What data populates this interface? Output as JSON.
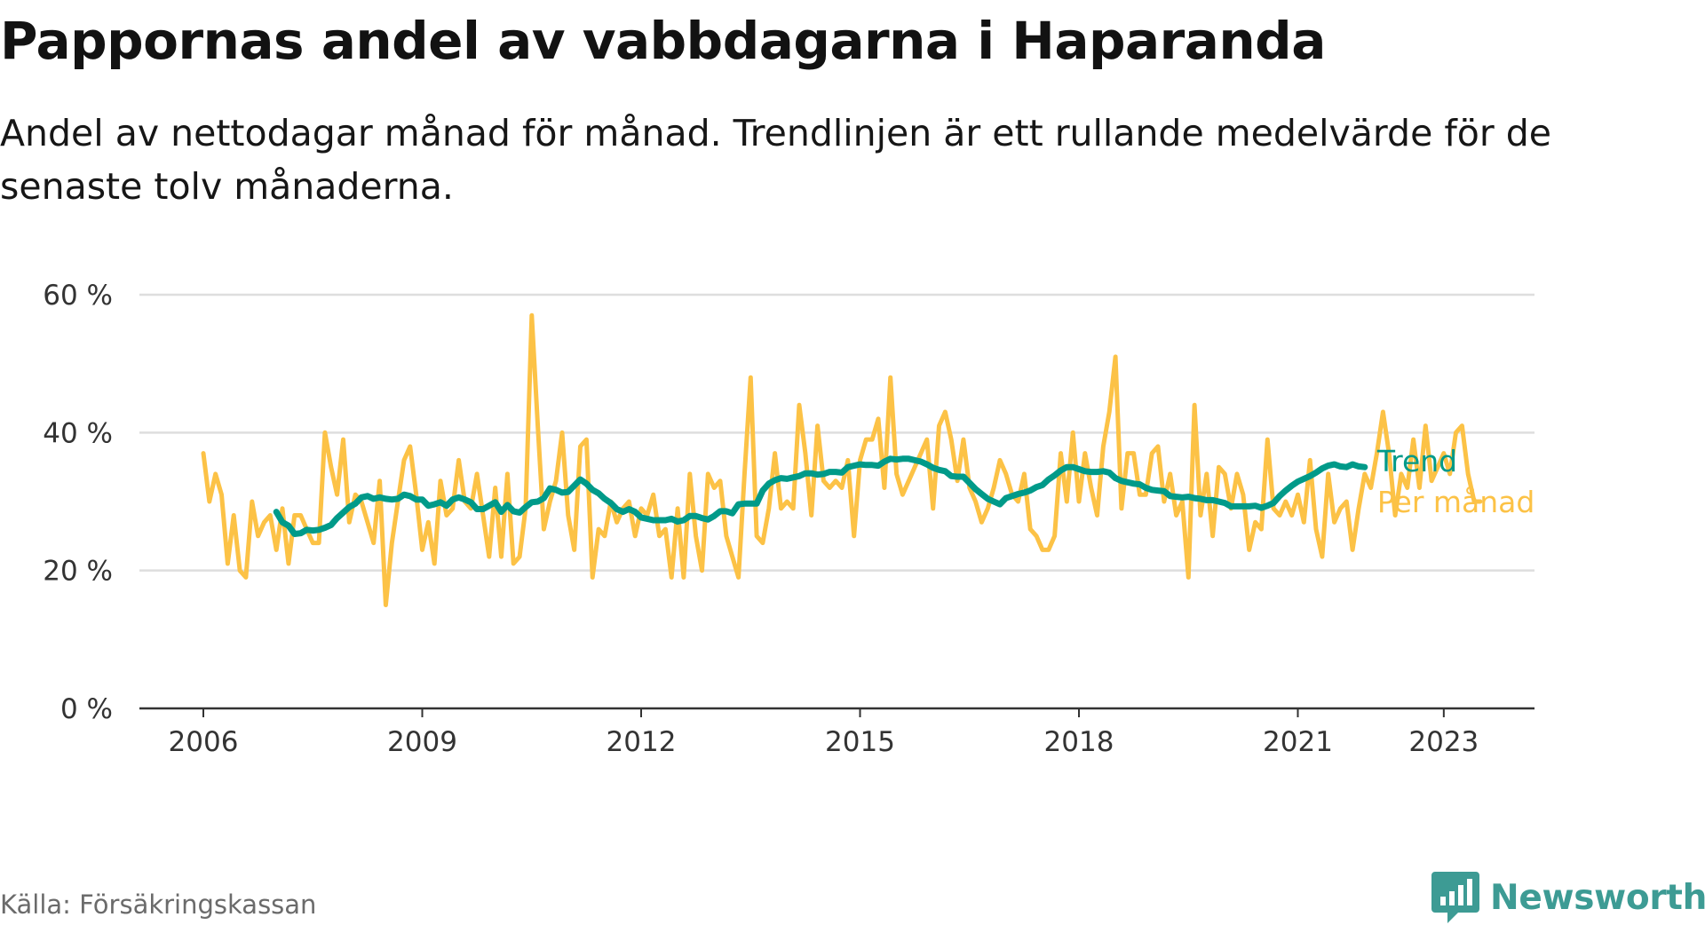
{
  "chart_data": {
    "type": "line",
    "title": "Pappornas andel av vabbdagarna i Haparanda",
    "subtitle": "Andel av nettodagar månad för månad. Trendlinjen är ett rullande medelvärde för de senaste tolv månaderna.",
    "xlabel": "",
    "ylabel": "",
    "x_ticks": [
      "2006",
      "2009",
      "2012",
      "2015",
      "2018",
      "2021",
      "2023"
    ],
    "y_ticks": [
      "0 %",
      "20 %",
      "40 %",
      "60 %"
    ],
    "ylim": [
      0,
      60
    ],
    "grid": true,
    "legend": "end-of-line labels",
    "series": [
      {
        "name": "Per månad",
        "color": "#fcc246",
        "start": "2006-01",
        "values": [
          37,
          30,
          34,
          31,
          21,
          28,
          20,
          19,
          30,
          25,
          27,
          28,
          23,
          29,
          21,
          28,
          28,
          26,
          24,
          24,
          40,
          35,
          31,
          39,
          27,
          31,
          30,
          27,
          24,
          33,
          15,
          24,
          30,
          36,
          38,
          31,
          23,
          27,
          21,
          33,
          28,
          29,
          36,
          30,
          29,
          34,
          28,
          22,
          32,
          22,
          34,
          21,
          22,
          29,
          57,
          41,
          26,
          30,
          33,
          40,
          28,
          23,
          38,
          39,
          19,
          26,
          25,
          30,
          27,
          29,
          30,
          25,
          29,
          28,
          31,
          25,
          26,
          19,
          29,
          19,
          34,
          25,
          20,
          34,
          32,
          33,
          25,
          22,
          19,
          34,
          48,
          25,
          24,
          29,
          37,
          29,
          30,
          29,
          44,
          37,
          28,
          41,
          33,
          32,
          33,
          32,
          36,
          25,
          36,
          39,
          39,
          42,
          32,
          48,
          34,
          31,
          33,
          35,
          37,
          39,
          29,
          41,
          43,
          39,
          33,
          39,
          32,
          30,
          27,
          29,
          32,
          36,
          34,
          31,
          30,
          34,
          26,
          25,
          23,
          23,
          25,
          37,
          30,
          40,
          30,
          37,
          32,
          28,
          38,
          43,
          51,
          29,
          37,
          37,
          31,
          31,
          37,
          38,
          30,
          34,
          28,
          30,
          19,
          44,
          28,
          34,
          25,
          35,
          34,
          29,
          34,
          31,
          23,
          27,
          26,
          39,
          29,
          28,
          30,
          28,
          31,
          27,
          36,
          26,
          22,
          34,
          27,
          29,
          30,
          23,
          29,
          34,
          32,
          37,
          43,
          37,
          28,
          34,
          32,
          39,
          32,
          41,
          33,
          35,
          37,
          34,
          40,
          41,
          34,
          30,
          30
        ]
      },
      {
        "name": "Trend",
        "color": "#009a89",
        "start": "2007-01",
        "values": [
          28.5,
          27,
          26.5,
          25.3,
          25.4,
          25.9,
          25.8,
          25.9,
          26.2,
          26.6,
          27.6,
          28.4,
          29.2,
          29.7,
          30.6,
          30.8,
          30.4,
          30.6,
          30.4,
          30.3,
          30.4,
          31,
          30.8,
          30.3,
          30.3,
          29.4,
          29.6,
          29.9,
          29.4,
          30.3,
          30.6,
          30.3,
          29.9,
          28.9,
          28.9,
          29.4,
          29.9,
          28.5,
          29.5,
          28.6,
          28.4,
          29.2,
          29.9,
          30,
          30.5,
          31.9,
          31.7,
          31.3,
          31.4,
          32.3,
          33.2,
          32.6,
          31.7,
          31.2,
          30.4,
          29.8,
          28.9,
          28.5,
          28.9,
          28.5,
          27.7,
          27.5,
          27.3,
          27.3,
          27.3,
          27.5,
          27.1,
          27.3,
          27.9,
          27.9,
          27.6,
          27.4,
          27.9,
          28.6,
          28.6,
          28.3,
          29.6,
          29.7,
          29.7,
          29.7,
          31.6,
          32.6,
          33.1,
          33.4,
          33.3,
          33.5,
          33.7,
          34.1,
          34.1,
          33.9,
          34,
          34.3,
          34.3,
          34.2,
          35,
          35.2,
          35.4,
          35.3,
          35.3,
          35.2,
          35.8,
          36.2,
          36.1,
          36.2,
          36.2,
          36,
          35.8,
          35.4,
          34.9,
          34.6,
          34.4,
          33.7,
          33.6,
          33.6,
          32.7,
          31.8,
          31.1,
          30.4,
          30,
          29.6,
          30.5,
          30.8,
          31.1,
          31.3,
          31.6,
          32.1,
          32.4,
          33.2,
          33.8,
          34.5,
          35,
          35,
          34.7,
          34.4,
          34.3,
          34.3,
          34.4,
          34.2,
          33.4,
          33,
          32.8,
          32.6,
          32.5,
          32,
          31.7,
          31.6,
          31.5,
          30.8,
          30.7,
          30.6,
          30.7,
          30.5,
          30.4,
          30.2,
          30.2,
          30,
          29.8,
          29.3,
          29.3,
          29.3,
          29.3,
          29.4,
          29.1,
          29.4,
          29.8,
          30.8,
          31.6,
          32.3,
          32.9,
          33.3,
          33.7,
          34.2,
          34.8,
          35.2,
          35.4,
          35.1,
          35,
          35.4,
          35.1,
          35
        ]
      }
    ]
  },
  "source": "Källa: Försäkringskassan",
  "brand": {
    "name": "Newsworthy",
    "icon": "bar-chart-bubble-icon",
    "color": "#3d9b94"
  }
}
